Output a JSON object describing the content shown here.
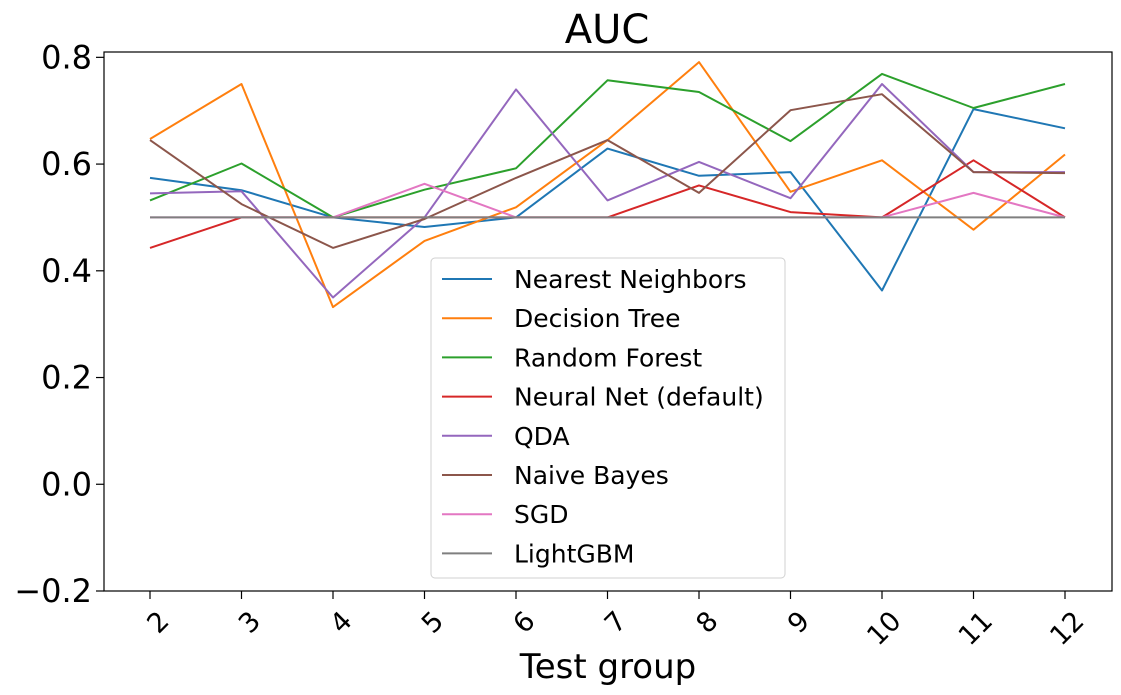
{
  "chart_data": {
    "type": "line",
    "title": "AUC",
    "xlabel": "Test group",
    "ylabel": "",
    "x": [
      2,
      3,
      4,
      5,
      6,
      7,
      8,
      9,
      10,
      11,
      12
    ],
    "x_tick_labels": [
      "2",
      "3",
      "4",
      "5",
      "6",
      "7",
      "8",
      "9",
      "10",
      "11",
      "12"
    ],
    "y_ticks": [
      -0.2,
      0.0,
      0.2,
      0.4,
      0.6,
      0.8
    ],
    "y_tick_labels": [
      "−0.2",
      "0.0",
      "0.2",
      "0.4",
      "0.6",
      "0.8"
    ],
    "ylim": [
      -0.2,
      0.81
    ],
    "grid": false,
    "legend_position": "lower-center",
    "series": [
      {
        "name": "Nearest Neighbors",
        "color": "#1f77b4",
        "values": [
          0.574,
          0.551,
          0.5,
          0.482,
          0.5,
          0.629,
          0.578,
          0.585,
          0.363,
          0.703,
          0.667
        ]
      },
      {
        "name": "Decision Tree",
        "color": "#ff7f0e",
        "values": [
          0.647,
          0.75,
          0.332,
          0.456,
          0.519,
          0.645,
          0.791,
          0.548,
          0.607,
          0.477,
          0.618
        ]
      },
      {
        "name": "Random Forest",
        "color": "#2ca02c",
        "values": [
          0.532,
          0.601,
          0.5,
          0.552,
          0.592,
          0.757,
          0.735,
          0.643,
          0.769,
          0.705,
          0.75
        ]
      },
      {
        "name": "Neural Net (default)",
        "color": "#d62728",
        "values": [
          0.443,
          0.5,
          0.5,
          0.5,
          0.5,
          0.5,
          0.56,
          0.51,
          0.5,
          0.607,
          0.5
        ]
      },
      {
        "name": "QDA",
        "color": "#9467bd",
        "values": [
          0.545,
          0.549,
          0.35,
          0.5,
          0.74,
          0.532,
          0.604,
          0.536,
          0.75,
          0.585,
          0.585
        ]
      },
      {
        "name": "Naive Bayes",
        "color": "#8c564b",
        "values": [
          0.645,
          0.525,
          0.443,
          0.497,
          0.574,
          0.645,
          0.546,
          0.701,
          0.731,
          0.585,
          0.583
        ]
      },
      {
        "name": "SGD",
        "color": "#e377c2",
        "values": [
          0.5,
          0.5,
          0.5,
          0.563,
          0.5,
          0.5,
          0.5,
          0.5,
          0.5,
          0.546,
          0.5
        ]
      },
      {
        "name": "LightGBM",
        "color": "#7f7f7f",
        "values": [
          0.5,
          0.5,
          0.5,
          0.5,
          0.5,
          0.5,
          0.5,
          0.5,
          0.5,
          0.5,
          0.5
        ]
      }
    ]
  }
}
